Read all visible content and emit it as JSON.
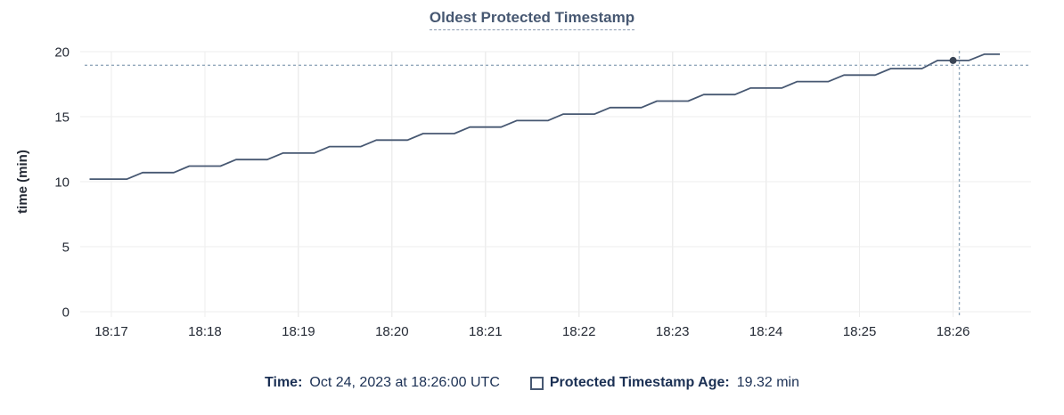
{
  "title": "Oldest Protected Timestamp",
  "legend": {
    "time_label": "Time:",
    "time_value": "Oct 24, 2023 at 18:26:00 UTC",
    "series_swatch": "hollow-square",
    "series_label": "Protected Timestamp Age:",
    "series_value": "19.32 min"
  },
  "chart_data": {
    "type": "line",
    "title": "Oldest Protected Timestamp",
    "xlabel": "",
    "ylabel": "time (min)",
    "ylim": [
      0,
      20
    ],
    "y_ticks": [
      0,
      5,
      10,
      15,
      20
    ],
    "grid": true,
    "x_domain_seconds": [
      0,
      610
    ],
    "x_ticks": [
      {
        "label": "18:17",
        "t": 20
      },
      {
        "label": "18:18",
        "t": 80
      },
      {
        "label": "18:19",
        "t": 140
      },
      {
        "label": "18:20",
        "t": 200
      },
      {
        "label": "18:21",
        "t": 260
      },
      {
        "label": "18:22",
        "t": 320
      },
      {
        "label": "18:23",
        "t": 380
      },
      {
        "label": "18:24",
        "t": 440
      },
      {
        "label": "18:25",
        "t": 500
      },
      {
        "label": "18:26",
        "t": 560
      }
    ],
    "series": [
      {
        "name": "Protected Timestamp Age",
        "unit": "min",
        "points": [
          [
            6,
            10.2
          ],
          [
            30,
            10.2
          ],
          [
            40,
            10.7
          ],
          [
            60,
            10.7
          ],
          [
            70,
            11.2
          ],
          [
            90,
            11.2
          ],
          [
            100,
            11.7
          ],
          [
            120,
            11.7
          ],
          [
            130,
            12.2
          ],
          [
            150,
            12.2
          ],
          [
            160,
            12.7
          ],
          [
            180,
            12.7
          ],
          [
            190,
            13.2
          ],
          [
            210,
            13.2
          ],
          [
            220,
            13.7
          ],
          [
            240,
            13.7
          ],
          [
            250,
            14.2
          ],
          [
            270,
            14.2
          ],
          [
            280,
            14.7
          ],
          [
            300,
            14.7
          ],
          [
            310,
            15.2
          ],
          [
            330,
            15.2
          ],
          [
            340,
            15.7
          ],
          [
            360,
            15.7
          ],
          [
            370,
            16.2
          ],
          [
            390,
            16.2
          ],
          [
            400,
            16.7
          ],
          [
            420,
            16.7
          ],
          [
            430,
            17.2
          ],
          [
            450,
            17.2
          ],
          [
            460,
            17.7
          ],
          [
            480,
            17.7
          ],
          [
            490,
            18.2
          ],
          [
            510,
            18.2
          ],
          [
            520,
            18.7
          ],
          [
            540,
            18.7
          ],
          [
            550,
            19.32
          ],
          [
            570,
            19.32
          ],
          [
            580,
            19.8
          ],
          [
            590,
            19.8
          ]
        ]
      }
    ],
    "hover": {
      "crosshair_t": 564,
      "mouse_value": 18.95,
      "point": {
        "t": 560,
        "time_label": "18:26",
        "value": 19.32
      }
    },
    "colors": {
      "line": "#475872",
      "dot": "#394455",
      "crosshair": "#93a9bc",
      "grid": "#ededed",
      "axis_text": "#242a35",
      "title": "#475872",
      "legend_text": "#1b3054"
    }
  }
}
